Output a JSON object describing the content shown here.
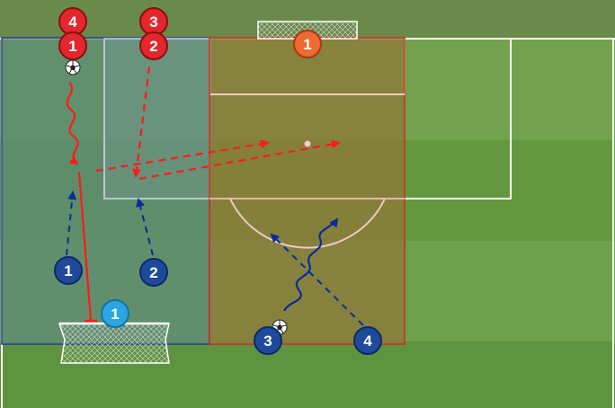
{
  "colors": {
    "grass_top": "#6a8a4a",
    "grass_light": "#72a24e",
    "grass_dark": "#5e9440",
    "red_team": "#e3272d",
    "red_outline": "#8a0f12",
    "orange_player": "#ef6a33",
    "blue_team": "#1f4a9c",
    "blue_outline": "#0d2a66",
    "keeper_blue": "#2aa7e0",
    "red_arrow": "#ff1a1a",
    "blue_arrow": "#0c2a9a",
    "zone_left": "#5c8a78",
    "zone_right": "#8c7a3a"
  },
  "players": {
    "red": [
      {
        "id": "r4",
        "label": "4"
      },
      {
        "id": "r1",
        "label": "1"
      },
      {
        "id": "r3",
        "label": "3"
      },
      {
        "id": "r2",
        "label": "2"
      }
    ],
    "orange": [
      {
        "id": "o1",
        "label": "1"
      }
    ],
    "blue": [
      {
        "id": "b1",
        "label": "1"
      },
      {
        "id": "b2",
        "label": "2"
      },
      {
        "id": "b3",
        "label": "3"
      },
      {
        "id": "b4",
        "label": "4"
      }
    ],
    "keeper": [
      {
        "id": "k1",
        "label": "1"
      }
    ]
  },
  "icons": [
    "soccer-ball-icon",
    "goal-net-icon"
  ]
}
